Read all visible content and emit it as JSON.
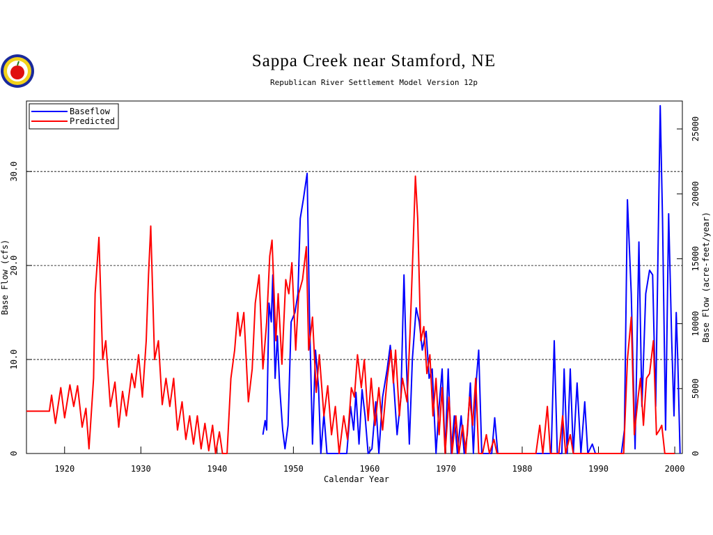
{
  "chart_data": {
    "type": "line",
    "title": "Sappa Creek near Stamford, NE",
    "subtitle": "Republican River Settlement Model Version 12p",
    "xlabel": "Calendar Year",
    "ylabel": "Base Flow (cfs)",
    "y2label": "Base Flow (acre-feet/year)",
    "xlim": [
      1915,
      2001
    ],
    "xticks": [
      1920,
      1930,
      1940,
      1950,
      1960,
      1970,
      1980,
      1990,
      2000
    ],
    "ylim": [
      0,
      37.5
    ],
    "yticks": [
      0,
      {
        "value": 10,
        "label": "10.0"
      },
      {
        "value": 20,
        "label": "20.0"
      },
      {
        "value": 30,
        "label": "30.0"
      }
    ],
    "y2lim": [
      0,
      27150
    ],
    "y2ticks": [
      0,
      5000,
      10000,
      15000,
      20000,
      25000
    ],
    "grid": true,
    "legend": "upper left",
    "series": [
      {
        "name": "Baseflow",
        "color": "#0000ff",
        "x": [
          1946.0,
          1946.3,
          1946.5,
          1946.8,
          1947.1,
          1947.3,
          1947.6,
          1947.9,
          1948.2,
          1948.6,
          1948.9,
          1949.3,
          1949.7,
          1950.2,
          1950.6,
          1950.9,
          1951.3,
          1951.8,
          1952.1,
          1952.5,
          1952.9,
          1953.3,
          1953.6,
          1954.0,
          1954.4,
          1955.0,
          1957.0,
          1957.5,
          1957.9,
          1958.2,
          1958.6,
          1959.0,
          1959.4,
          1959.8,
          1960.3,
          1960.8,
          1961.2,
          1961.7,
          1962.3,
          1962.7,
          1963.1,
          1963.6,
          1964.1,
          1964.5,
          1964.8,
          1965.2,
          1965.6,
          1966.1,
          1966.5,
          1966.9,
          1967.4,
          1967.8,
          1968.2,
          1968.7,
          1969.1,
          1969.5,
          1969.9,
          1970.3,
          1970.7,
          1971.1,
          1971.5,
          1972.0,
          1972.4,
          1972.8,
          1973.2,
          1973.6,
          1974.0,
          1974.3,
          1974.7,
          1976.0,
          1976.4,
          1976.8,
          1983.8,
          1984.2,
          1984.6,
          1985.2,
          1985.5,
          1985.9,
          1986.3,
          1986.7,
          1987.2,
          1987.7,
          1988.2,
          1988.6,
          1989.2,
          1989.6,
          1993.0,
          1993.4,
          1993.8,
          1994.3,
          1994.8,
          1995.3,
          1995.7,
          1996.2,
          1996.7,
          1997.1,
          1997.5,
          1998.1,
          1998.4,
          1998.8,
          1999.2,
          1999.6,
          1999.9,
          2000.2,
          2000.4,
          2000.7
        ],
        "values": [
          2.0,
          3.5,
          2.5,
          16,
          14,
          19,
          8,
          12.5,
          7,
          2.5,
          0.5,
          3,
          14,
          15,
          17,
          25,
          27,
          29.8,
          15,
          1,
          11,
          7,
          0,
          4.2,
          0,
          0,
          0,
          5,
          2.5,
          6.5,
          1,
          6.8,
          4,
          0,
          0.5,
          5.5,
          0,
          6,
          9,
          11.5,
          8,
          2,
          6,
          19,
          10,
          1,
          10,
          15.5,
          14,
          11,
          13,
          8,
          9,
          0,
          5,
          9,
          0,
          9,
          0,
          4,
          0,
          4,
          0,
          2,
          7.5,
          0,
          8,
          11,
          0,
          0,
          3.8,
          0,
          0,
          12,
          0,
          0,
          9,
          0,
          9,
          0,
          7.5,
          0,
          5.5,
          0,
          1,
          0,
          0,
          2.5,
          27,
          17,
          0.5,
          22.5,
          5,
          17,
          19.5,
          19,
          5,
          37,
          25,
          2.5,
          25.5,
          12,
          4,
          15,
          10,
          0
        ]
      },
      {
        "name": "Predicted",
        "color": "#ff0000",
        "x": [
          1915,
          1918,
          1918.3,
          1918.8,
          1919.5,
          1920,
          1920.7,
          1921.2,
          1921.7,
          1922.3,
          1922.8,
          1923.2,
          1923.8,
          1924.0,
          1924.5,
          1925.0,
          1925.4,
          1926.0,
          1926.6,
          1927.1,
          1927.6,
          1928.1,
          1928.8,
          1929.2,
          1929.7,
          1930.2,
          1930.7,
          1931.0,
          1931.3,
          1931.8,
          1932.3,
          1932.8,
          1933.3,
          1933.8,
          1934.3,
          1934.8,
          1935.4,
          1935.9,
          1936.4,
          1936.9,
          1937.4,
          1937.9,
          1938.4,
          1938.9,
          1939.4,
          1939.8,
          1940.3,
          1940.7,
          1941.3,
          1941.8,
          1942.3,
          1942.7,
          1943.0,
          1943.5,
          1944.1,
          1944.6,
          1945.0,
          1945.5,
          1946.0,
          1946.5,
          1946.9,
          1947.2,
          1947.7,
          1948.0,
          1948.5,
          1949.0,
          1949.4,
          1949.8,
          1950.3,
          1950.7,
          1951.2,
          1951.7,
          1952.0,
          1952.5,
          1953.0,
          1953.4,
          1954.0,
          1954.5,
          1955.0,
          1955.5,
          1956.0,
          1956.6,
          1957.1,
          1957.6,
          1958.0,
          1958.4,
          1958.9,
          1959.3,
          1959.8,
          1960.2,
          1960.7,
          1961.2,
          1961.7,
          1962.3,
          1962.8,
          1963.1,
          1963.4,
          1963.9,
          1964.3,
          1964.9,
          1965.3,
          1965.7,
          1966.0,
          1966.3,
          1966.7,
          1967.1,
          1967.5,
          1967.9,
          1968.3,
          1968.7,
          1969.1,
          1969.5,
          1969.9,
          1970.4,
          1970.8,
          1971.3,
          1971.7,
          1972.2,
          1972.6,
          1973.1,
          1973.5,
          1973.9,
          1974.3,
          1974.8,
          1975.3,
          1975.7,
          1976.3,
          1976.7,
          1981.8,
          1982.3,
          1982.7,
          1983.3,
          1983.7,
          1984.8,
          1985.3,
          1985.7,
          1986.3,
          1986.7,
          1993.3,
          1993.8,
          1994.3,
          1994.7,
          1995.2,
          1995.5,
          1995.9,
          1996.3,
          1996.7,
          1997.2,
          1997.6,
          1998.0,
          1998.3,
          1998.7,
          2000
        ],
        "values": [
          4.5,
          4.5,
          6.2,
          3.2,
          7.0,
          3.8,
          7.3,
          5.0,
          7.2,
          2.8,
          4.8,
          0.5,
          8.0,
          17,
          23,
          10,
          12,
          5.0,
          7.6,
          2.8,
          6.6,
          4.0,
          8.5,
          7.0,
          10.5,
          6.0,
          12,
          19,
          24.2,
          10,
          12,
          5.2,
          8.0,
          5.0,
          8.0,
          2.5,
          5.5,
          1.5,
          4.0,
          1.0,
          4.0,
          0.5,
          3.2,
          0.3,
          3.0,
          0,
          2.3,
          0,
          0,
          8,
          11,
          15,
          12.5,
          15,
          5.5,
          9,
          16,
          19,
          9,
          14,
          21,
          22.7,
          12,
          17,
          9.5,
          18.5,
          17,
          20.3,
          11,
          17,
          18.5,
          22,
          11,
          14.5,
          6.5,
          10.5,
          4,
          7.2,
          2.0,
          5.0,
          0,
          4,
          1.5,
          7,
          6,
          10.5,
          7,
          10,
          3.5,
          8,
          3,
          7,
          2.5,
          8,
          11,
          7.5,
          11,
          4,
          8,
          5.5,
          13,
          22,
          29.5,
          25,
          12,
          13.5,
          8.5,
          10.5,
          4,
          8,
          2,
          7,
          0,
          6,
          0,
          4,
          0,
          3,
          0,
          6,
          3,
          8,
          0,
          0,
          2,
          0,
          1.5,
          0,
          0,
          3,
          0,
          5,
          0,
          0,
          4,
          0,
          2,
          0,
          0,
          10,
          14.5,
          2,
          6,
          8,
          3,
          8,
          8.5,
          12,
          2,
          2.5,
          3,
          0,
          0
        ]
      }
    ]
  }
}
